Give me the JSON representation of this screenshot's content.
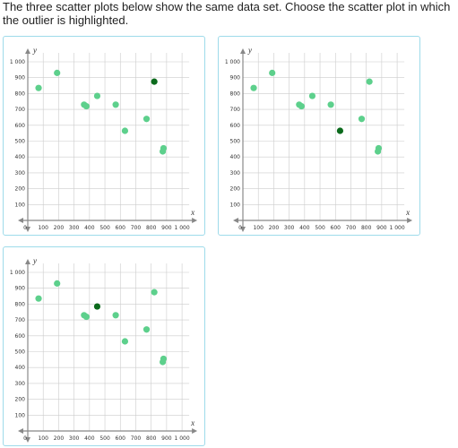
{
  "question": {
    "text": "The three scatter plots below show the same data set. Choose the scatter plot in which the outlier is highlighted."
  },
  "colors": {
    "point": "#5dd08c",
    "highlight": "#0b6a1c",
    "card_border": "#9edbea",
    "grid": "#cccccc",
    "axis": "#888888"
  },
  "chart_data": [
    {
      "type": "scatter",
      "option": 1,
      "xlabel": "x",
      "ylabel": "y",
      "xlim": [
        0,
        1000
      ],
      "ylim": [
        0,
        1000
      ],
      "x_ticks": [
        "0",
        "100",
        "200",
        "300",
        "400",
        "500",
        "600",
        "700",
        "800",
        "900",
        "1 000"
      ],
      "y_ticks": [
        "100",
        "200",
        "300",
        "400",
        "500",
        "600",
        "700",
        "800",
        "900",
        "1 000"
      ],
      "points": [
        [
          70,
          835
        ],
        [
          190,
          930
        ],
        [
          365,
          730
        ],
        [
          380,
          720
        ],
        [
          450,
          785
        ],
        [
          570,
          730
        ],
        [
          630,
          565
        ],
        [
          770,
          640
        ],
        [
          880,
          455
        ],
        [
          875,
          435
        ],
        [
          820,
          875
        ]
      ],
      "highlighted_index": 10
    },
    {
      "type": "scatter",
      "option": 2,
      "xlabel": "x",
      "ylabel": "y",
      "xlim": [
        0,
        1000
      ],
      "ylim": [
        0,
        1000
      ],
      "x_ticks": [
        "0",
        "100",
        "200",
        "300",
        "400",
        "500",
        "600",
        "700",
        "800",
        "900",
        "1 000"
      ],
      "y_ticks": [
        "100",
        "200",
        "300",
        "400",
        "500",
        "600",
        "700",
        "800",
        "900",
        "1 000"
      ],
      "points": [
        [
          70,
          835
        ],
        [
          190,
          930
        ],
        [
          365,
          730
        ],
        [
          380,
          720
        ],
        [
          450,
          785
        ],
        [
          570,
          730
        ],
        [
          630,
          565
        ],
        [
          770,
          640
        ],
        [
          880,
          455
        ],
        [
          875,
          435
        ],
        [
          820,
          875
        ]
      ],
      "highlighted_index": 6
    },
    {
      "type": "scatter",
      "option": 3,
      "xlabel": "x",
      "ylabel": "y",
      "xlim": [
        0,
        1000
      ],
      "ylim": [
        0,
        1000
      ],
      "x_ticks": [
        "0",
        "100",
        "200",
        "300",
        "400",
        "500",
        "600",
        "700",
        "800",
        "900",
        "1 000"
      ],
      "y_ticks": [
        "100",
        "200",
        "300",
        "400",
        "500",
        "600",
        "700",
        "800",
        "900",
        "1 000"
      ],
      "points": [
        [
          70,
          835
        ],
        [
          190,
          930
        ],
        [
          365,
          730
        ],
        [
          380,
          720
        ],
        [
          450,
          785
        ],
        [
          570,
          730
        ],
        [
          630,
          565
        ],
        [
          770,
          640
        ],
        [
          880,
          455
        ],
        [
          875,
          435
        ],
        [
          820,
          875
        ]
      ],
      "highlighted_index": 4
    }
  ]
}
